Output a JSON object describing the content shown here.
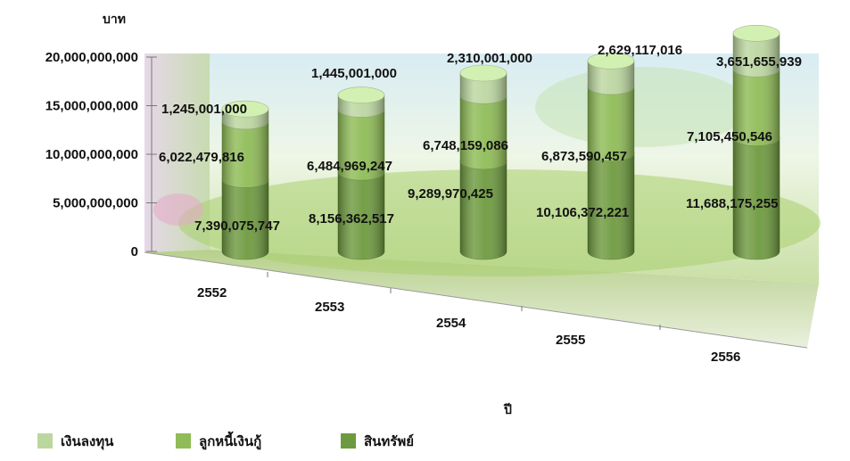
{
  "chart_data": {
    "type": "bar",
    "style": "3d-stacked-cylinder",
    "title": "",
    "ylabel": "บาท",
    "xlabel": "ปี",
    "categories": [
      "2552",
      "2553",
      "2554",
      "2555",
      "2556"
    ],
    "ylim": [
      0,
      20000000000
    ],
    "yticks": [
      0,
      5000000000,
      10000000000,
      15000000000,
      20000000000
    ],
    "ytick_labels": [
      "0",
      "5,000,000,000",
      "10,000,000,000",
      "15,000,000,000",
      "20,000,000,000"
    ],
    "series": [
      {
        "name": "สินทรัพย์",
        "color": "#6e9a3f",
        "values": [
          7390075747,
          8156362517,
          9289970425,
          10106372221,
          11688175255
        ],
        "labels": [
          "7,390,075,747",
          "8,156,362,517",
          "9,289,970,425",
          "10,106,372,221",
          "11,688,175,255"
        ]
      },
      {
        "name": "ลูกหนี้เงินกู้",
        "color": "#8fbc57",
        "values": [
          6022479816,
          6484969247,
          6748159086,
          6873590457,
          7105450546
        ],
        "labels": [
          "6,022,479,816",
          "6,484,969,247",
          "6,748,159,086",
          "6,873,590,457",
          "7,105,450,546"
        ]
      },
      {
        "name": "เงินลงทุน",
        "color": "#bcd6a0",
        "values": [
          1245001000,
          1445001000,
          2310001000,
          2629117016,
          3651655939
        ],
        "labels": [
          "1,245,001,000",
          "1,445,001,000",
          "2,310,001,000",
          "2,629,117,016",
          "3,651,655,939"
        ]
      }
    ],
    "legend": {
      "position": "bottom-left",
      "order": [
        "เงินลงทุน",
        "ลูกหนี้เงินกู้",
        "สินทรัพย์"
      ]
    },
    "grid": false
  }
}
